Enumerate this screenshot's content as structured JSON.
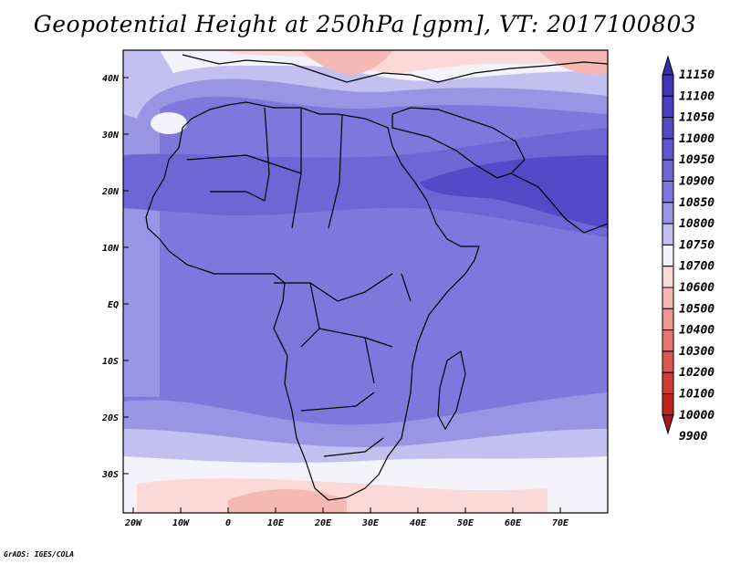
{
  "title": "Geopotential Height at 250hPa [gpm], VT: 2017100803",
  "credit": "GrADS: IGES/COLA",
  "lat_labels": [
    "40N",
    "30N",
    "20N",
    "10N",
    "EQ",
    "10S",
    "20S",
    "30S"
  ],
  "lon_labels": [
    "20W",
    "10W",
    "0",
    "10E",
    "20E",
    "30E",
    "40E",
    "50E",
    "60E",
    "70E"
  ],
  "colorbar": {
    "labels": [
      "11150",
      "11100",
      "11050",
      "11000",
      "10950",
      "10900",
      "10850",
      "10800",
      "10750",
      "10700",
      "10600",
      "10500",
      "10400",
      "10300",
      "10200",
      "10100",
      "10000",
      "9900"
    ],
    "colors": [
      "#3a2fa8",
      "#4035b3",
      "#4a40c0",
      "#5549c8",
      "#6157d0",
      "#6f66d6",
      "#7f78dc",
      "#9a94e4",
      "#c3c0f0",
      "#f4f2fb",
      "#fbd9d6",
      "#f5b8b2",
      "#ee9790",
      "#e57770",
      "#dc5850",
      "#d23c36",
      "#c0241f",
      "#a51a17"
    ]
  },
  "map_data": {
    "variable": "Geopotential Height",
    "level": "250hPa",
    "units": "gpm",
    "valid_time": "2017100803",
    "lon_range": [
      -22,
      80
    ],
    "lat_range": [
      -37,
      45
    ]
  }
}
